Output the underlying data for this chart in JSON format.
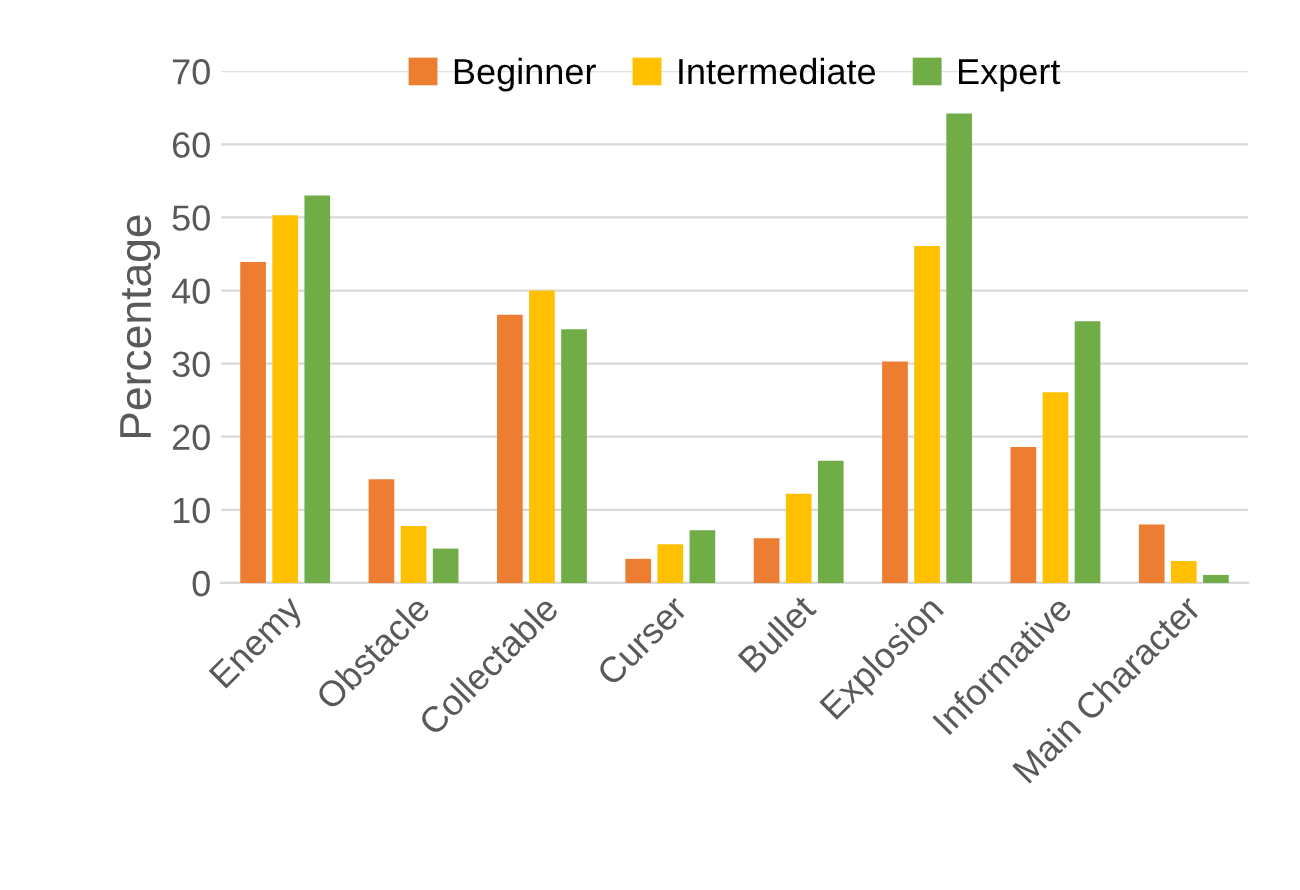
{
  "chart_data": {
    "type": "bar",
    "ylabel": "Percentage",
    "categories": [
      "Enemy",
      "Obstacle",
      "Collectable",
      "Curser",
      "Bullet",
      "Explosion",
      "Informative",
      "Main Character"
    ],
    "series": [
      {
        "name": "Beginner",
        "color": "#ed7d31",
        "values": [
          43.9,
          14.2,
          36.7,
          3.3,
          6.1,
          30.3,
          18.6,
          8.0
        ]
      },
      {
        "name": "Intermediate",
        "color": "#ffc000",
        "values": [
          50.3,
          7.8,
          40.0,
          5.3,
          12.2,
          46.1,
          26.1,
          3.0
        ]
      },
      {
        "name": "Expert",
        "color": "#70ad47",
        "values": [
          53.0,
          4.7,
          34.7,
          7.2,
          16.7,
          64.2,
          35.8,
          1.1
        ]
      }
    ],
    "ylim": [
      0,
      70
    ],
    "yticks": [
      0,
      10,
      20,
      30,
      40,
      50,
      60,
      70
    ],
    "grid": "y",
    "legend": "top"
  }
}
